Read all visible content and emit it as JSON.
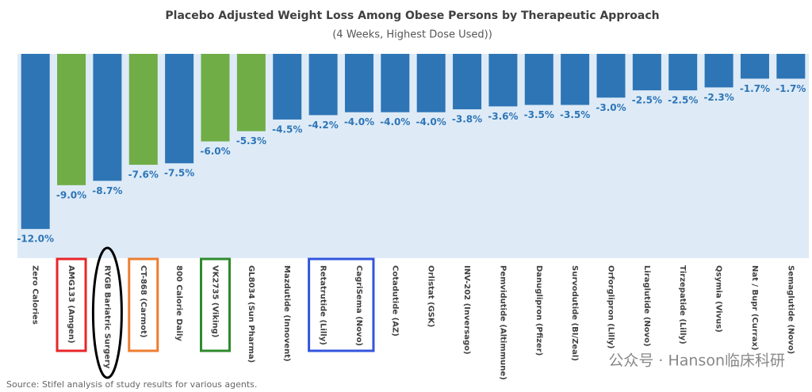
{
  "chart_data": {
    "type": "bar",
    "title": "Placebo Adjusted Weight Loss Among Obese Persons by Therapeutic Approach",
    "subtitle": "(4 Weeks, Highest Dose Used))",
    "categories": [
      "Zero Calories",
      "AMG133 (Amgen)",
      "RYGB Bariatric Surgery",
      "CT-868 (Carmot)",
      "800 Calorie Daily",
      "VK2735 (Viking)",
      "GL8034 (Sun Pharma)",
      "Mazdutide (Innovent)",
      "Retatrutide (Lilly)",
      "CagriSema (Novo)",
      "Cotadutide (AZ)",
      "Orlistat (GSK)",
      "INV-202 (Inversago)",
      "Pemvidutide (Altimmune)",
      "Danuglipron (Pfizer)",
      "Survodutide (BI/Zeal)",
      "Orforglipron (Lilly)",
      "Liraglutide (Novo)",
      "Tirzepatide (Lilly)",
      "Qsymia (Vivus)",
      "Nat / Bupr (Currax)",
      "Semaglutide (Novo)"
    ],
    "values": [
      -12.0,
      -9.0,
      -8.7,
      -7.6,
      -7.5,
      -6.0,
      -5.3,
      -4.5,
      -4.2,
      -4.0,
      -4.0,
      -4.0,
      -3.8,
      -3.6,
      -3.5,
      -3.5,
      -3.0,
      -2.5,
      -2.5,
      -2.3,
      -1.7,
      -1.7
    ],
    "value_labels": [
      "-12.0%",
      "-9.0%",
      "-8.7%",
      "-7.6%",
      "-7.5%",
      "-6.0%",
      "-5.3%",
      "-4.5%",
      "-4.2%",
      "-4.0%",
      "-4.0%",
      "-4.0%",
      "-3.8%",
      "-3.6%",
      "-3.5%",
      "-3.5%",
      "-3.0%",
      "-2.5%",
      "-2.5%",
      "-2.3%",
      "-1.7%",
      "-1.7%"
    ],
    "colors": [
      "#2e75b6",
      "#70ad47",
      "#2e75b6",
      "#70ad47",
      "#2e75b6",
      "#70ad47",
      "#70ad47",
      "#2e75b6",
      "#2e75b6",
      "#2e75b6",
      "#2e75b6",
      "#2e75b6",
      "#2e75b6",
      "#2e75b6",
      "#2e75b6",
      "#2e75b6",
      "#2e75b6",
      "#2e75b6",
      "#2e75b6",
      "#2e75b6",
      "#2e75b6",
      "#2e75b6"
    ],
    "ylim": [
      -14,
      0
    ],
    "source": "Source: Stifel analysis of study results for various agents.",
    "watermark": "公众号 · Hanson临床科研"
  }
}
